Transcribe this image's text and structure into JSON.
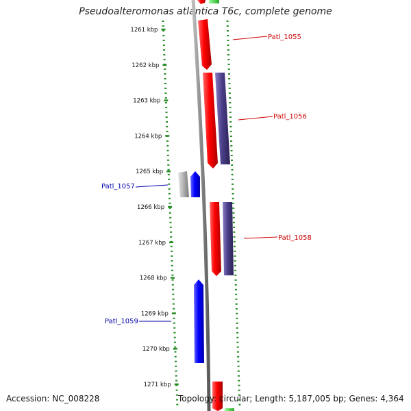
{
  "title": "Pseudoalteromonas atlantica T6c, complete genome",
  "footer": {
    "accession": "Accession: NC_008228",
    "summary": "Topology: circular; Length: 5,187,005 bp; Genes: 4,364"
  },
  "colors": {
    "forward_gene": "#ff0000",
    "forward_gene_alt": "#4b3f8a",
    "reverse_gene": "#0000ff",
    "reverse_gene_alt": "#b0b0b0",
    "scale_dots": "#228b22",
    "backbone": "#888888",
    "forward_label": "#cc0000",
    "reverse_label": "#0000aa"
  },
  "scale_ticks": [
    "1261 kbp",
    "1262 kbp",
    "1263 kbp",
    "1264 kbp",
    "1265 kbp",
    "1266 kbp",
    "1267 kbp",
    "1268 kbp",
    "1269 kbp",
    "1270 kbp",
    "1271 kbp"
  ],
  "gene_labels": [
    {
      "name": "Patl_1055",
      "strand": "forward"
    },
    {
      "name": "Patl_1056",
      "strand": "forward"
    },
    {
      "name": "Patl_1057",
      "strand": "reverse"
    },
    {
      "name": "Patl_1058",
      "strand": "forward"
    },
    {
      "name": "Patl_1059",
      "strand": "reverse"
    }
  ]
}
